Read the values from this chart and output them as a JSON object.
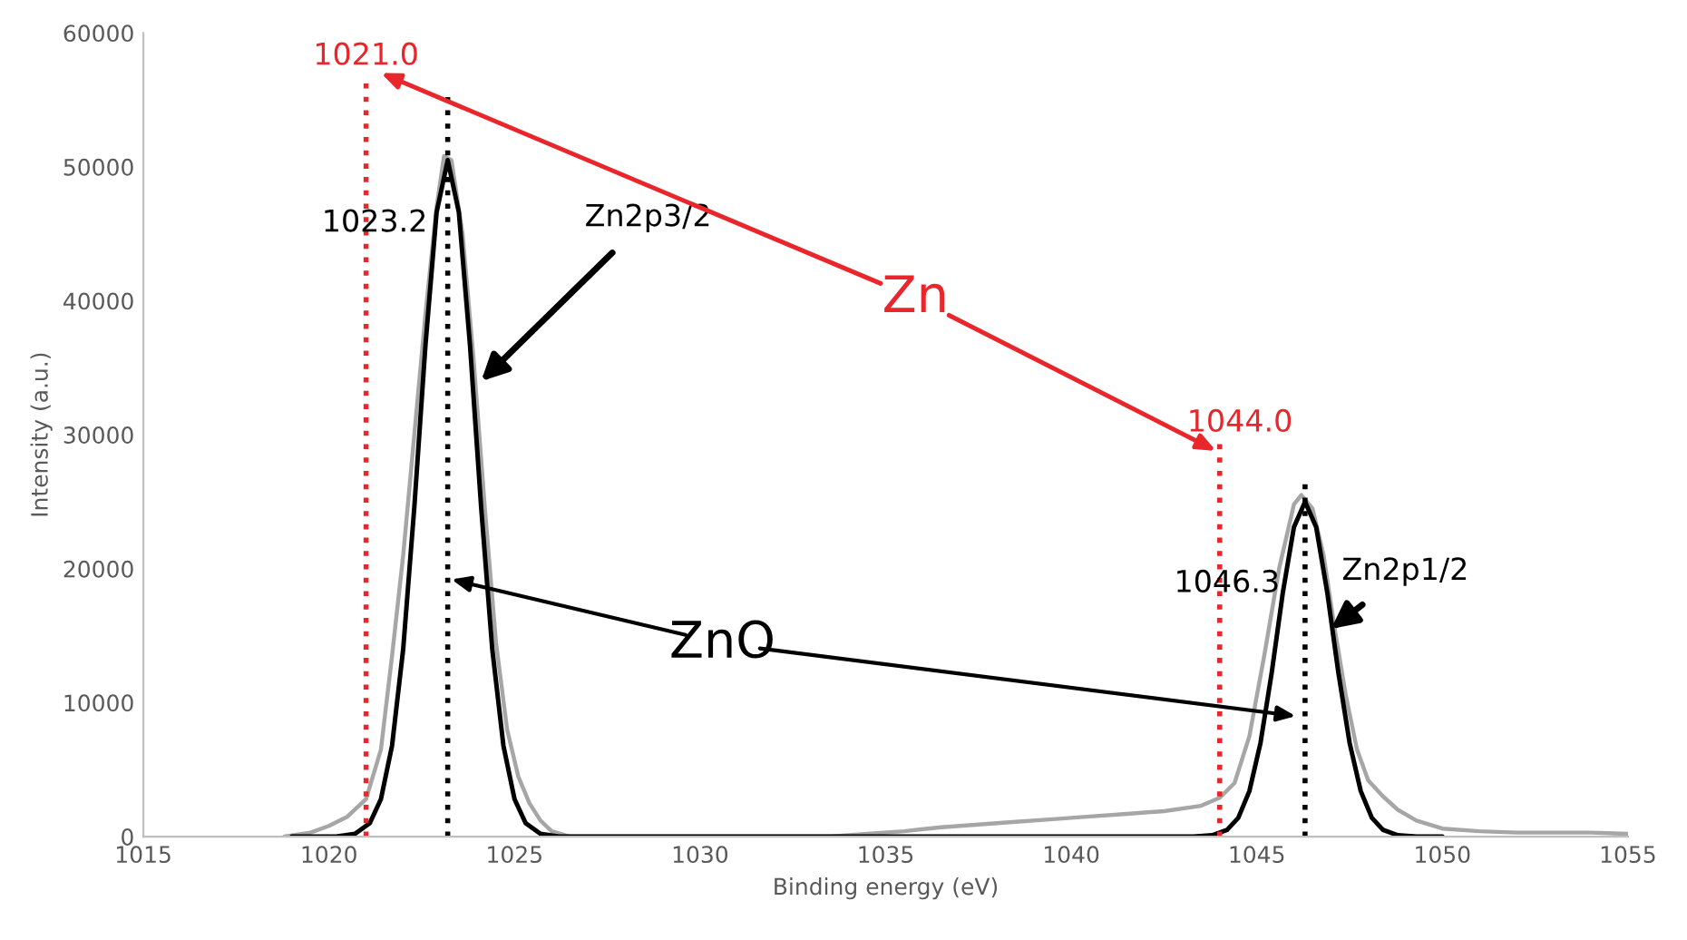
{
  "chart_data": {
    "type": "line",
    "xlabel": "Binding energy (eV)",
    "ylabel": "Intensity (a.u.)",
    "xlim": [
      1015,
      1055
    ],
    "xticks": [
      1015,
      1020,
      1025,
      1030,
      1035,
      1040,
      1045,
      1050,
      1055
    ],
    "ylim": [
      0,
      60000
    ],
    "yticks": [
      0,
      10000,
      20000,
      30000,
      40000,
      50000,
      60000
    ],
    "grid": false,
    "legend": false,
    "marker": "none",
    "line_style": "solid",
    "series": [
      {
        "color": "#a6a6a6",
        "x": [
          1018.8,
          1019.5,
          1020.0,
          1020.5,
          1021.0,
          1021.4,
          1021.7,
          1022.0,
          1022.3,
          1022.6,
          1022.9,
          1023.1,
          1023.3,
          1023.6,
          1023.9,
          1024.2,
          1024.5,
          1024.8,
          1025.1,
          1025.4,
          1025.7,
          1026.0,
          1026.5,
          1033.5,
          1034.5,
          1035.5,
          1036.5,
          1037.5,
          1038.5,
          1039.5,
          1040.5,
          1041.5,
          1042.5,
          1043.5,
          1044.0,
          1044.4,
          1044.8,
          1045.2,
          1045.6,
          1046.0,
          1046.2,
          1046.5,
          1046.8,
          1047.1,
          1047.4,
          1047.7,
          1048.0,
          1048.4,
          1048.8,
          1049.3,
          1050.0,
          1051.0,
          1052.0,
          1053.0,
          1054.0,
          1055.0
        ],
        "values": [
          0,
          300,
          800,
          1500,
          2800,
          6500,
          13500,
          21000,
          30000,
          39000,
          47000,
          50800,
          50500,
          45000,
          35500,
          24500,
          14500,
          8000,
          4500,
          2500,
          1200,
          400,
          0,
          0,
          200,
          400,
          700,
          900,
          1100,
          1300,
          1500,
          1700,
          1900,
          2300,
          2900,
          4000,
          7500,
          13500,
          20000,
          24800,
          25500,
          24500,
          21000,
          15500,
          10500,
          6500,
          4200,
          3000,
          2000,
          1200,
          600,
          400,
          300,
          300,
          300,
          200
        ]
      },
      {
        "color": "#000000",
        "x": [
          1019.0,
          1020.2,
          1020.7,
          1021.1,
          1021.4,
          1021.7,
          1022.0,
          1022.3,
          1022.6,
          1022.9,
          1023.2,
          1023.5,
          1023.8,
          1024.1,
          1024.4,
          1024.7,
          1025.0,
          1025.3,
          1025.7,
          1026.2,
          1043.3,
          1043.8,
          1044.2,
          1044.5,
          1044.8,
          1045.1,
          1045.4,
          1045.7,
          1046.0,
          1046.3,
          1046.6,
          1046.9,
          1047.2,
          1047.5,
          1047.8,
          1048.1,
          1048.4,
          1048.8,
          1049.3,
          1050.0
        ],
        "values": [
          0,
          0,
          200,
          1000,
          2800,
          6800,
          14000,
          24600,
          36700,
          46600,
          50500,
          46600,
          36700,
          24600,
          14000,
          6800,
          2800,
          1000,
          200,
          0,
          0,
          100,
          500,
          1400,
          3400,
          7000,
          12200,
          18200,
          23100,
          25000,
          23100,
          18200,
          12200,
          7000,
          3400,
          1400,
          500,
          100,
          0,
          0
        ]
      }
    ],
    "ref_lines": [
      {
        "axis": "x",
        "value": 1021.0,
        "label": "1021.0",
        "color": "#e8262b",
        "line_style": "dotted"
      },
      {
        "axis": "x",
        "value": 1044.0,
        "label": "1044.0",
        "color": "#e8262b",
        "line_style": "dotted"
      },
      {
        "axis": "x",
        "value": 1023.2,
        "label": "1023.2",
        "color": "#000000",
        "line_style": "dotted"
      },
      {
        "axis": "x",
        "value": 1046.3,
        "label": "1046.3",
        "color": "#000000",
        "line_style": "dotted"
      }
    ],
    "annotations": [
      {
        "text": "Zn2p3/2",
        "x": 1024.1,
        "y": 34000
      },
      {
        "text": "Zn2p1/2",
        "x": 1047.0,
        "y": 15500
      },
      "Zn",
      "ZnO"
    ]
  }
}
